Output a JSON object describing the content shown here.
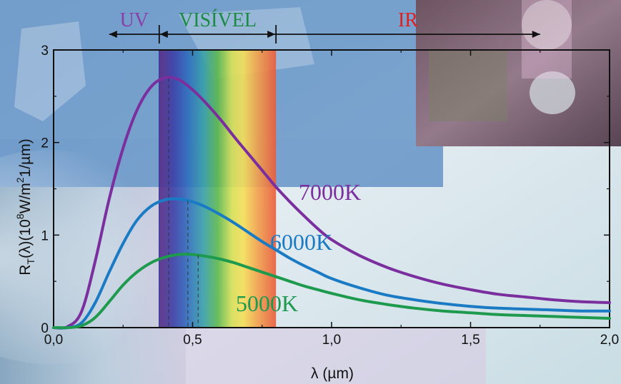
{
  "chart_data": {
    "type": "line",
    "xlabel": "λ (µm)",
    "ylabel": "R_T(λ)(10^8W/m^2 1/µm)",
    "ylabel_parts": [
      "R",
      "T",
      "(λ)(10",
      "8",
      "W/m",
      "2",
      "1/µm)"
    ],
    "xlim": [
      0,
      2.0
    ],
    "ylim": [
      0,
      3
    ],
    "x_ticks": [
      0,
      0.5,
      1.0,
      1.5,
      2.0
    ],
    "x_tick_labels": [
      "0,0",
      "0,5",
      "1,0",
      "1,5",
      "2,0"
    ],
    "y_ticks": [
      0,
      1,
      2,
      3
    ],
    "y_tick_labels": [
      "0",
      "1",
      "2",
      "3"
    ],
    "grid": false,
    "series": [
      {
        "name": "7000K",
        "color": "#7b2f9e",
        "peak_x": 0.414,
        "x": [
          0.0,
          0.05,
          0.1,
          0.15,
          0.2,
          0.25,
          0.3,
          0.35,
          0.4,
          0.45,
          0.5,
          0.55,
          0.6,
          0.65,
          0.7,
          0.75,
          0.8,
          0.85,
          0.9,
          0.95,
          1.0,
          1.1,
          1.2,
          1.3,
          1.4,
          1.5,
          1.6,
          1.7,
          1.8,
          1.9,
          2.0
        ],
        "y": [
          0.0,
          0.01,
          0.17,
          0.72,
          1.39,
          1.94,
          2.35,
          2.6,
          2.7,
          2.68,
          2.57,
          2.42,
          2.25,
          2.06,
          1.88,
          1.7,
          1.52,
          1.36,
          1.21,
          1.07,
          0.95,
          0.78,
          0.65,
          0.55,
          0.47,
          0.41,
          0.36,
          0.33,
          0.3,
          0.28,
          0.27
        ]
      },
      {
        "name": "6000K",
        "color": "#1a7bc4",
        "peak_x": 0.483,
        "x": [
          0.0,
          0.05,
          0.1,
          0.15,
          0.2,
          0.25,
          0.3,
          0.35,
          0.4,
          0.45,
          0.5,
          0.55,
          0.6,
          0.65,
          0.7,
          0.75,
          0.8,
          0.85,
          0.9,
          0.95,
          1.0,
          1.1,
          1.2,
          1.3,
          1.4,
          1.5,
          1.6,
          1.7,
          1.8,
          1.9,
          2.0
        ],
        "y": [
          0.0,
          0.0,
          0.05,
          0.27,
          0.6,
          0.91,
          1.16,
          1.31,
          1.38,
          1.39,
          1.36,
          1.3,
          1.22,
          1.13,
          1.03,
          0.93,
          0.84,
          0.75,
          0.67,
          0.6,
          0.53,
          0.43,
          0.35,
          0.3,
          0.26,
          0.23,
          0.21,
          0.2,
          0.19,
          0.18,
          0.18
        ]
      },
      {
        "name": "5000K",
        "color": "#1e9a4e",
        "peak_x": 0.52,
        "x": [
          0.0,
          0.05,
          0.1,
          0.15,
          0.2,
          0.25,
          0.3,
          0.35,
          0.4,
          0.45,
          0.5,
          0.55,
          0.6,
          0.65,
          0.7,
          0.75,
          0.8,
          0.85,
          0.9,
          0.95,
          1.0,
          1.1,
          1.2,
          1.3,
          1.4,
          1.5,
          1.6,
          1.7,
          1.8,
          1.9,
          2.0
        ],
        "y": [
          0.0,
          0.0,
          0.02,
          0.11,
          0.28,
          0.46,
          0.6,
          0.7,
          0.76,
          0.79,
          0.79,
          0.77,
          0.74,
          0.7,
          0.65,
          0.6,
          0.55,
          0.5,
          0.45,
          0.41,
          0.37,
          0.3,
          0.25,
          0.21,
          0.18,
          0.16,
          0.14,
          0.13,
          0.12,
          0.11,
          0.1
        ]
      }
    ],
    "spectrum_band": {
      "from": 0.38,
      "to": 0.8
    },
    "regions": [
      {
        "label": "UV",
        "color": "#8a3fa8",
        "from": 0.2,
        "to": 0.38
      },
      {
        "label": "VISÍVEL",
        "color": "#1b8a45",
        "from": 0.38,
        "to": 0.8
      },
      {
        "label": "IR",
        "color": "#e02020",
        "from": 0.8,
        "to": 1.75
      }
    ]
  }
}
